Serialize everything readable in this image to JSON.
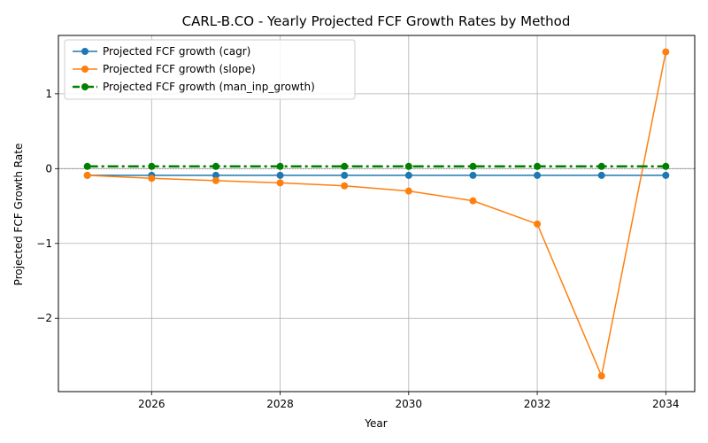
{
  "chart_data": {
    "type": "line",
    "title": "CARL-B.CO - Yearly Projected FCF Growth Rates by Method",
    "xlabel": "Year",
    "ylabel": "Projected FCF Growth Rate",
    "x": [
      2025,
      2026,
      2027,
      2028,
      2029,
      2030,
      2031,
      2032,
      2033,
      2034
    ],
    "xlim": [
      2024.55,
      2034.45
    ],
    "ylim": [
      -2.98,
      1.78
    ],
    "xticks": [
      2026,
      2028,
      2030,
      2032,
      2034
    ],
    "yticks": [
      -2,
      -1,
      0,
      1
    ],
    "ytick_labels": [
      "−2",
      "−1",
      "0",
      "1"
    ],
    "grid": true,
    "legend_position": "top-left",
    "series": [
      {
        "name": "Projected FCF growth (cagr)",
        "color": "#1f77b4",
        "style": "solid",
        "values": [
          -0.09,
          -0.09,
          -0.09,
          -0.09,
          -0.09,
          -0.09,
          -0.09,
          -0.09,
          -0.09,
          -0.09
        ]
      },
      {
        "name": "Projected FCF growth (slope)",
        "color": "#ff7f0e",
        "style": "solid",
        "values": [
          -0.09,
          -0.13,
          -0.16,
          -0.19,
          -0.23,
          -0.3,
          -0.43,
          -0.74,
          -2.77,
          1.56
        ]
      },
      {
        "name": "Projected FCF growth (man_inp_growth)",
        "color": "#008000",
        "style": "dashdot",
        "values": [
          0.03,
          0.03,
          0.03,
          0.03,
          0.03,
          0.03,
          0.03,
          0.03,
          0.03,
          0.03
        ]
      }
    ]
  }
}
